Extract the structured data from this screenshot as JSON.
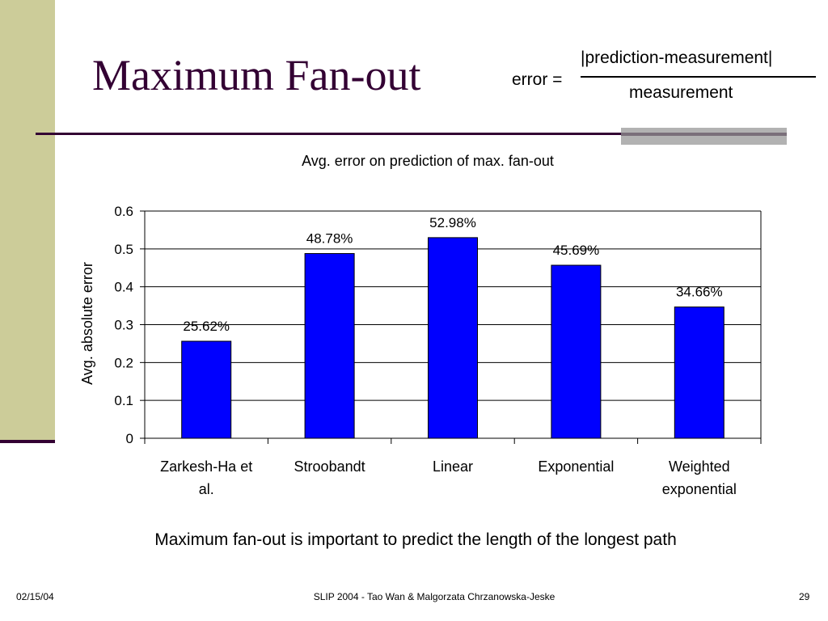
{
  "slide": {
    "title": "Maximum Fan-out",
    "formula": {
      "lhs": "error =",
      "numerator": "|prediction-measurement|",
      "denominator": "measurement"
    },
    "caption": "Maximum fan-out is important to predict the length of the longest path",
    "footer": {
      "date": "02/15/04",
      "center": "SLIP 2004  - Tao Wan & Malgorzata Chrzanowska-Jeske",
      "page": "29"
    }
  },
  "chart_data": {
    "type": "bar",
    "title": "Avg. error on prediction of max. fan-out",
    "xlabel": "",
    "ylabel": "Avg. absolute error",
    "ylim": [
      0,
      0.6
    ],
    "yticks": [
      "0",
      "0.1",
      "0.2",
      "0.3",
      "0.4",
      "0.5",
      "0.6"
    ],
    "categories": [
      [
        "Zarkesh-Ha et",
        "al."
      ],
      [
        "Stroobandt"
      ],
      [
        "Linear"
      ],
      [
        "Exponential"
      ],
      [
        "Weighted",
        "exponential"
      ]
    ],
    "values": [
      0.2562,
      0.4878,
      0.5298,
      0.4569,
      0.3466
    ],
    "data_labels": [
      "25.62%",
      "48.78%",
      "52.98%",
      "45.69%",
      "34.66%"
    ],
    "grid": true,
    "bar_color": "#0000ff"
  }
}
